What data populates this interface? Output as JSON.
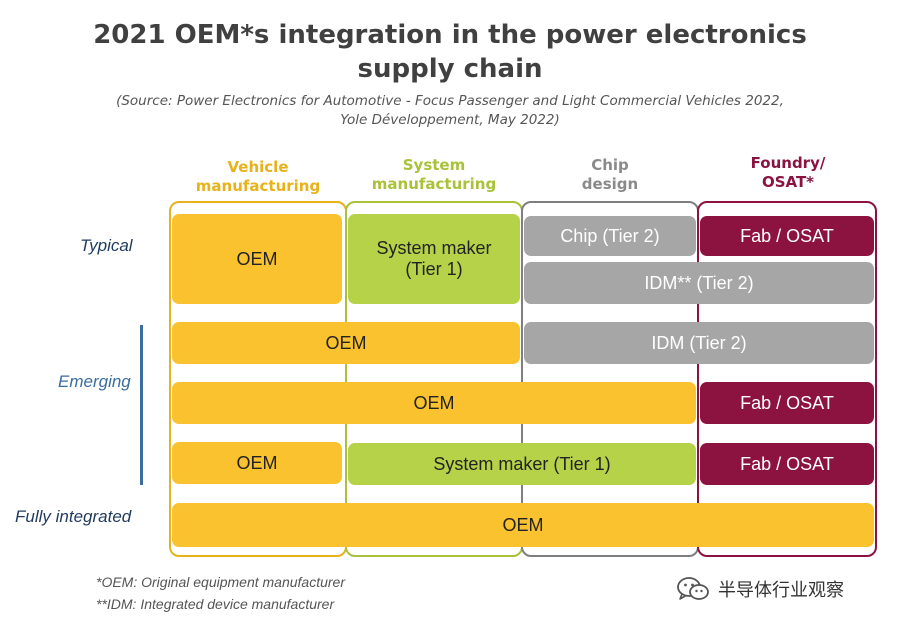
{
  "title": {
    "line1": "2021 OEM*s integration in the power electronics",
    "line2": "supply chain"
  },
  "source": {
    "line1": "(Source: Power Electronics for Automotive - Focus Passenger and Light Commercial Vehicles 2022,",
    "line2": "Yole Développement, May 2022)"
  },
  "columns": [
    {
      "line1": "Vehicle",
      "line2": "manufacturing",
      "color": "#e8b21a"
    },
    {
      "line1": "System",
      "line2": "manufacturing",
      "color": "#a9c23a"
    },
    {
      "line1": "Chip",
      "line2": "design",
      "color": "#8a8a8a"
    },
    {
      "line1": "Foundry/",
      "line2": "OSAT*",
      "color": "#8c1340"
    }
  ],
  "rows": {
    "typical": "Typical",
    "emerging": "Emerging",
    "fully_integrated": "Fully integrated"
  },
  "boxes": {
    "typical_oem": "OEM",
    "typical_system_line1": "System maker",
    "typical_system_line2": "(Tier 1)",
    "typical_chip": "Chip (Tier 2)",
    "typical_fab": "Fab / OSAT",
    "typical_idm": "IDM** (Tier 2)",
    "em1_oem": "OEM",
    "em1_idm": "IDM (Tier 2)",
    "em2_oem": "OEM",
    "em2_fab": "Fab / OSAT",
    "em3_oem": "OEM",
    "em3_system": "System maker (Tier 1)",
    "em3_fab": "Fab / OSAT",
    "full_oem": "OEM"
  },
  "footnotes": {
    "oem": "*OEM: Original equipment manufacturer",
    "idm": "**IDM: Integrated device manufacturer"
  },
  "watermark": {
    "text": "半导体行业观察",
    "icon": "wechat-icon"
  },
  "colors": {
    "oem_yellow": "#f9c22e",
    "system_green": "#b5d249",
    "chip_gray": "#a7a6a6",
    "fab_maroon": "#8c1340",
    "emerging_blue": "#3a6e9e",
    "typical_navy": "#1f3a5f"
  }
}
